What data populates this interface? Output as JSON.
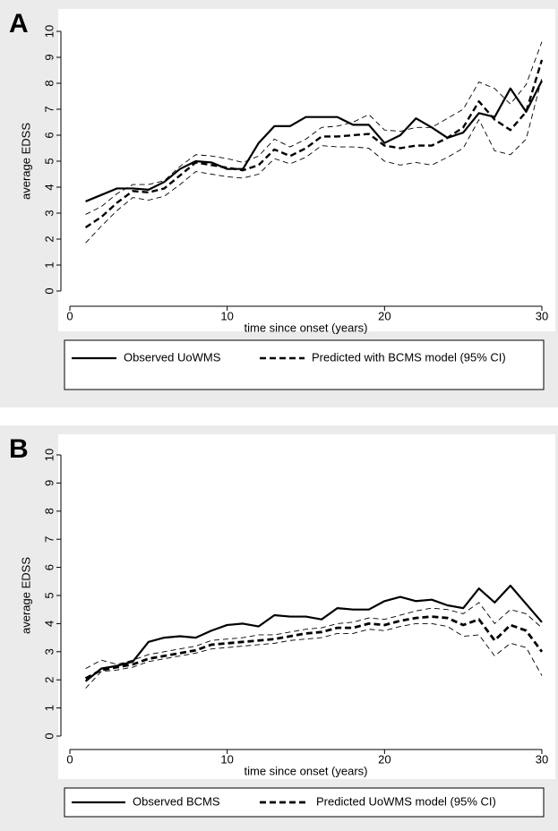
{
  "chart_data": [
    {
      "type": "line",
      "panel_label": "A",
      "x_label": "time since onset (years)",
      "y_label": "average EDSS",
      "x": [
        1,
        2,
        3,
        4,
        5,
        6,
        7,
        8,
        9,
        10,
        11,
        12,
        13,
        14,
        15,
        16,
        17,
        18,
        19,
        20,
        21,
        22,
        23,
        24,
        25,
        26,
        27,
        28,
        29,
        30
      ],
      "xlim": [
        0,
        30
      ],
      "xticks": [
        0,
        10,
        20,
        30
      ],
      "ylim": [
        0,
        10
      ],
      "yticks": [
        0,
        1,
        2,
        3,
        4,
        5,
        6,
        7,
        8,
        9,
        10
      ],
      "series": [
        {
          "name": "Observed UoWMS",
          "color": "#000000",
          "style": "solid",
          "width": 2.2,
          "values": [
            3.45,
            3.7,
            3.95,
            3.95,
            3.9,
            4.2,
            4.7,
            5.0,
            4.95,
            4.7,
            4.7,
            5.7,
            6.35,
            6.35,
            6.7,
            6.7,
            6.7,
            6.4,
            6.4,
            5.7,
            6.0,
            6.65,
            6.3,
            5.9,
            6.1,
            6.85,
            6.7,
            7.8,
            6.9,
            8.1
          ]
        },
        {
          "name": "Predicted with BCMS model (95% CI)",
          "color": "#000000",
          "style": "dashed",
          "width": 2.4,
          "values": [
            2.45,
            2.85,
            3.4,
            3.85,
            3.8,
            3.95,
            4.45,
            4.95,
            4.85,
            4.75,
            4.65,
            4.85,
            5.45,
            5.2,
            5.5,
            5.95,
            5.95,
            6.0,
            6.05,
            5.6,
            5.5,
            5.6,
            5.6,
            5.9,
            6.3,
            7.3,
            6.6,
            6.2,
            6.9,
            8.9
          ]
        },
        {
          "color": "#000000",
          "style": "dashed",
          "width": 0.9,
          "values": [
            1.85,
            2.5,
            3.1,
            3.6,
            3.5,
            3.65,
            4.1,
            4.6,
            4.5,
            4.4,
            4.35,
            4.5,
            5.1,
            4.9,
            5.15,
            5.6,
            5.55,
            5.55,
            5.5,
            5.0,
            4.85,
            4.95,
            4.85,
            5.15,
            5.5,
            6.6,
            5.4,
            5.25,
            5.85,
            8.2
          ]
        },
        {
          "color": "#000000",
          "style": "dashed",
          "width": 0.9,
          "values": [
            2.95,
            3.25,
            3.75,
            4.1,
            4.1,
            4.25,
            4.8,
            5.25,
            5.2,
            5.1,
            4.95,
            5.2,
            5.85,
            5.55,
            5.85,
            6.3,
            6.35,
            6.5,
            6.8,
            6.2,
            6.15,
            6.3,
            6.3,
            6.65,
            7.0,
            8.05,
            7.8,
            7.2,
            7.95,
            9.6
          ]
        }
      ]
    },
    {
      "type": "line",
      "panel_label": "B",
      "x_label": "time since onset (years)",
      "y_label": "average EDSS",
      "x": [
        1,
        2,
        3,
        4,
        5,
        6,
        7,
        8,
        9,
        10,
        11,
        12,
        13,
        14,
        15,
        16,
        17,
        18,
        19,
        20,
        21,
        22,
        23,
        24,
        25,
        26,
        27,
        28,
        29,
        30
      ],
      "xlim": [
        0,
        30
      ],
      "xticks": [
        0,
        10,
        20,
        30
      ],
      "ylim": [
        0,
        10
      ],
      "yticks": [
        0,
        1,
        2,
        3,
        4,
        5,
        6,
        7,
        8,
        9,
        10
      ],
      "series": [
        {
          "name": "Observed BCMS",
          "color": "#000000",
          "style": "solid",
          "width": 2.2,
          "values": [
            1.95,
            2.4,
            2.5,
            2.65,
            3.35,
            3.5,
            3.55,
            3.5,
            3.75,
            3.95,
            4.0,
            3.9,
            4.3,
            4.25,
            4.25,
            4.15,
            4.55,
            4.5,
            4.5,
            4.8,
            4.95,
            4.8,
            4.85,
            4.65,
            4.55,
            5.25,
            4.75,
            5.35,
            4.7,
            4.05
          ]
        },
        {
          "name": "Predicted UoWMS model (95% CI)",
          "color": "#000000",
          "style": "dashed",
          "width": 2.8,
          "values": [
            2.05,
            2.35,
            2.45,
            2.55,
            2.75,
            2.85,
            2.95,
            3.05,
            3.25,
            3.3,
            3.35,
            3.4,
            3.45,
            3.55,
            3.65,
            3.7,
            3.85,
            3.85,
            4.0,
            3.95,
            4.1,
            4.2,
            4.25,
            4.2,
            3.95,
            4.15,
            3.4,
            3.95,
            3.75,
            3.0
          ]
        },
        {
          "color": "#000000",
          "style": "dashed",
          "width": 0.9,
          "values": [
            1.7,
            2.3,
            2.35,
            2.45,
            2.65,
            2.75,
            2.85,
            2.95,
            3.1,
            3.15,
            3.2,
            3.25,
            3.3,
            3.4,
            3.45,
            3.5,
            3.65,
            3.65,
            3.8,
            3.75,
            3.9,
            4.0,
            4.0,
            3.9,
            3.55,
            3.6,
            2.85,
            3.3,
            3.15,
            2.15
          ]
        },
        {
          "color": "#000000",
          "style": "dashed",
          "width": 0.9,
          "values": [
            2.4,
            2.7,
            2.55,
            2.7,
            2.9,
            3.0,
            3.1,
            3.2,
            3.4,
            3.45,
            3.5,
            3.6,
            3.6,
            3.7,
            3.8,
            3.85,
            4.0,
            4.05,
            4.2,
            4.15,
            4.3,
            4.45,
            4.55,
            4.5,
            4.35,
            4.75,
            4.0,
            4.5,
            4.35,
            3.85
          ]
        }
      ]
    }
  ]
}
